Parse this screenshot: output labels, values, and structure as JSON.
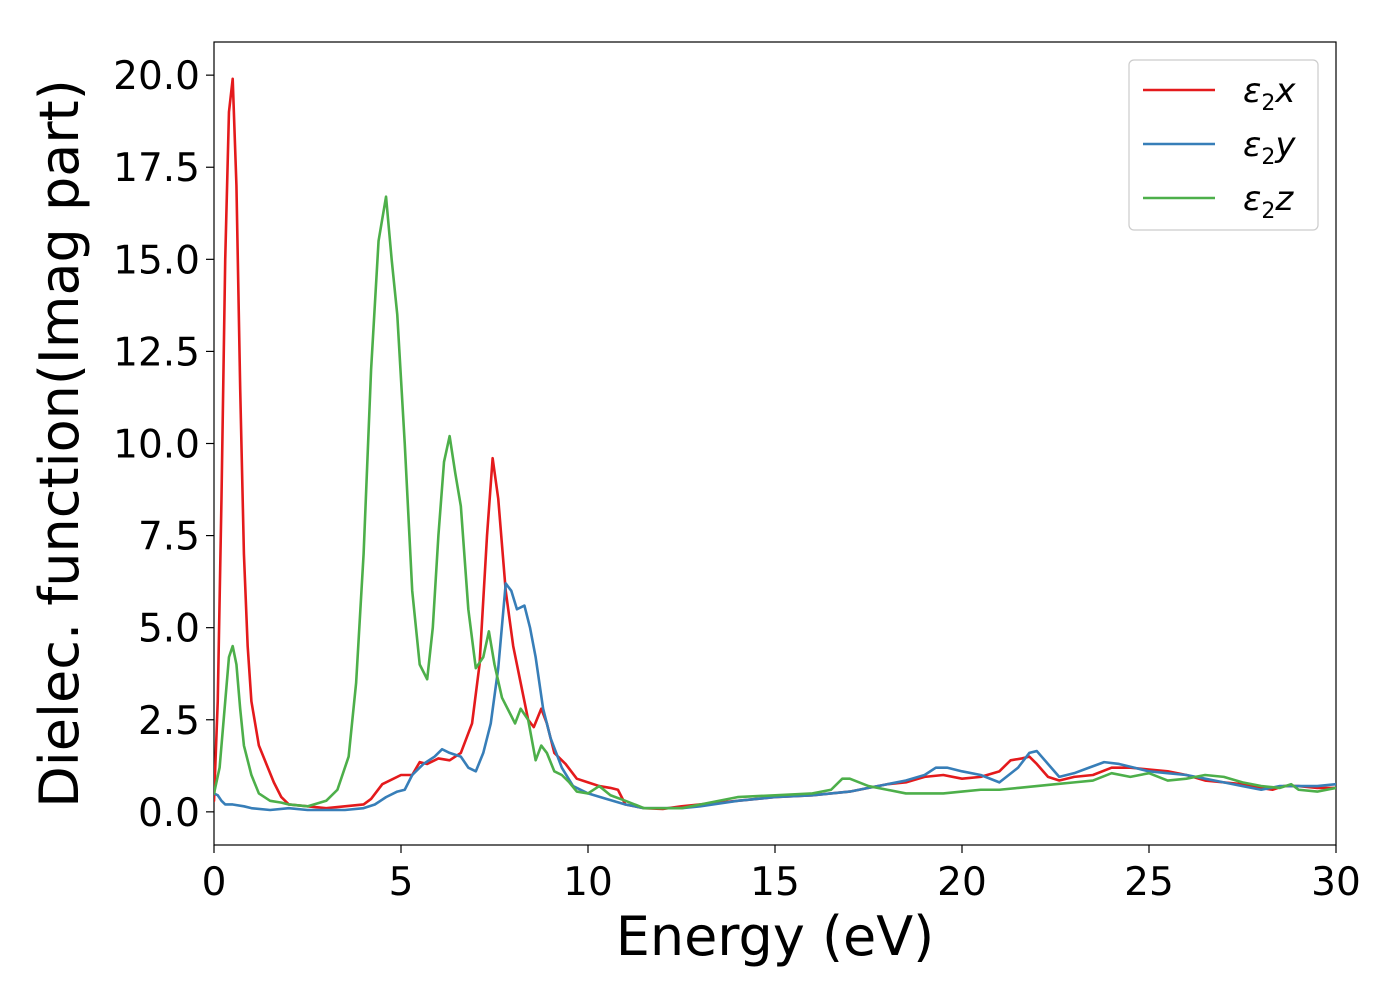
{
  "chart_data": {
    "type": "line",
    "xlabel": "Energy (eV)",
    "ylabel": "Dielec. function(Imag part)",
    "xlim": [
      0,
      30
    ],
    "ylim": [
      -0.9,
      20.9
    ],
    "x_ticks": [
      "0",
      "5",
      "10",
      "15",
      "20",
      "25",
      "30"
    ],
    "y_ticks": [
      "0.0",
      "2.5",
      "5.0",
      "7.5",
      "10.0",
      "12.5",
      "15.0",
      "17.5",
      "20.0"
    ],
    "grid": false,
    "legend_position": "top-right",
    "legend": [
      {
        "symbol": "ε",
        "sub": "2",
        "var": "x"
      },
      {
        "symbol": "ε",
        "sub": "2",
        "var": "y"
      },
      {
        "symbol": "ε",
        "sub": "2",
        "var": "z"
      }
    ],
    "series": [
      {
        "color": "#e41a1c",
        "x": [
          0.0,
          0.1,
          0.2,
          0.3,
          0.4,
          0.5,
          0.6,
          0.7,
          0.8,
          0.9,
          1.0,
          1.2,
          1.4,
          1.6,
          1.8,
          2.0,
          2.5,
          3.0,
          3.5,
          4.0,
          4.2,
          4.5,
          5.0,
          5.3,
          5.5,
          5.7,
          6.0,
          6.3,
          6.6,
          6.9,
          7.1,
          7.3,
          7.45,
          7.6,
          7.8,
          8.0,
          8.2,
          8.4,
          8.55,
          8.75,
          8.9,
          9.1,
          9.4,
          9.7,
          10.0,
          10.3,
          10.6,
          10.8,
          11.0,
          11.5,
          12.0,
          12.5,
          13.0,
          14.0,
          15.0,
          16.0,
          17.0,
          17.5,
          18.0,
          18.5,
          19.0,
          19.5,
          20.0,
          20.5,
          21.0,
          21.3,
          21.6,
          21.8,
          22.0,
          22.3,
          22.6,
          23.0,
          23.5,
          24.0,
          24.5,
          25.0,
          25.5,
          26.0,
          26.5,
          27.0,
          27.5,
          28.0,
          28.3,
          28.6,
          29.0,
          29.5,
          30.0
        ],
        "y": [
          0.3,
          3.0,
          8.5,
          15.0,
          19.0,
          19.9,
          17.0,
          11.5,
          7.0,
          4.5,
          3.0,
          1.8,
          1.3,
          0.8,
          0.4,
          0.2,
          0.15,
          0.1,
          0.15,
          0.2,
          0.35,
          0.75,
          1.0,
          1.0,
          1.35,
          1.3,
          1.45,
          1.4,
          1.6,
          2.4,
          4.0,
          7.5,
          9.6,
          8.5,
          6.0,
          4.5,
          3.5,
          2.5,
          2.3,
          2.8,
          2.4,
          1.6,
          1.3,
          0.9,
          0.8,
          0.7,
          0.65,
          0.6,
          0.2,
          0.1,
          0.08,
          0.15,
          0.2,
          0.3,
          0.4,
          0.45,
          0.55,
          0.65,
          0.75,
          0.8,
          0.95,
          1.0,
          0.9,
          0.95,
          1.1,
          1.4,
          1.45,
          1.5,
          1.3,
          0.95,
          0.85,
          0.95,
          1.0,
          1.2,
          1.2,
          1.15,
          1.1,
          1.0,
          0.85,
          0.8,
          0.75,
          0.65,
          0.6,
          0.7,
          0.7,
          0.65,
          0.65
        ]
      },
      {
        "color": "#377eb8",
        "x": [
          0.0,
          0.1,
          0.2,
          0.3,
          0.5,
          0.8,
          1.0,
          1.5,
          2.0,
          2.5,
          3.0,
          3.5,
          4.0,
          4.3,
          4.6,
          4.9,
          5.1,
          5.3,
          5.6,
          5.9,
          6.1,
          6.3,
          6.6,
          6.8,
          7.0,
          7.2,
          7.4,
          7.6,
          7.8,
          7.95,
          8.1,
          8.3,
          8.45,
          8.6,
          8.8,
          9.0,
          9.3,
          9.6,
          10.0,
          10.5,
          11.0,
          11.5,
          12.0,
          12.5,
          13.0,
          14.0,
          15.0,
          16.0,
          17.0,
          17.5,
          18.0,
          18.5,
          19.0,
          19.3,
          19.6,
          20.0,
          20.5,
          21.0,
          21.5,
          21.8,
          22.0,
          22.3,
          22.6,
          23.0,
          23.4,
          23.8,
          24.2,
          24.6,
          25.0,
          25.5,
          26.0,
          26.5,
          27.0,
          27.5,
          28.0,
          28.5,
          29.0,
          29.5,
          30.0
        ],
        "y": [
          0.5,
          0.45,
          0.3,
          0.2,
          0.2,
          0.15,
          0.1,
          0.05,
          0.1,
          0.05,
          0.05,
          0.05,
          0.1,
          0.2,
          0.4,
          0.55,
          0.6,
          1.0,
          1.3,
          1.5,
          1.7,
          1.6,
          1.5,
          1.2,
          1.1,
          1.6,
          2.4,
          3.9,
          6.2,
          6.0,
          5.5,
          5.6,
          5.0,
          4.2,
          2.8,
          2.0,
          1.2,
          0.7,
          0.5,
          0.35,
          0.2,
          0.1,
          0.1,
          0.1,
          0.15,
          0.3,
          0.4,
          0.45,
          0.55,
          0.65,
          0.75,
          0.85,
          1.0,
          1.2,
          1.2,
          1.1,
          1.0,
          0.8,
          1.2,
          1.6,
          1.65,
          1.3,
          0.95,
          1.05,
          1.2,
          1.35,
          1.3,
          1.2,
          1.1,
          1.05,
          1.0,
          0.9,
          0.8,
          0.7,
          0.6,
          0.7,
          0.7,
          0.7,
          0.75
        ]
      },
      {
        "color": "#4daf4a",
        "x": [
          0.0,
          0.15,
          0.3,
          0.4,
          0.5,
          0.6,
          0.7,
          0.8,
          1.0,
          1.2,
          1.5,
          1.8,
          2.0,
          2.5,
          3.0,
          3.3,
          3.6,
          3.8,
          4.0,
          4.2,
          4.4,
          4.6,
          4.75,
          4.9,
          5.1,
          5.3,
          5.5,
          5.7,
          5.85,
          6.0,
          6.15,
          6.3,
          6.45,
          6.6,
          6.8,
          7.0,
          7.2,
          7.35,
          7.5,
          7.7,
          7.9,
          8.05,
          8.2,
          8.4,
          8.6,
          8.75,
          8.9,
          9.1,
          9.3,
          9.5,
          9.7,
          10.0,
          10.3,
          10.6,
          11.0,
          11.5,
          12.0,
          12.5,
          13.0,
          14.0,
          15.0,
          16.0,
          16.5,
          16.8,
          17.0,
          17.5,
          18.0,
          18.5,
          19.0,
          19.5,
          20.0,
          20.5,
          21.0,
          21.5,
          22.0,
          22.5,
          23.0,
          23.5,
          24.0,
          24.5,
          25.0,
          25.5,
          26.0,
          26.5,
          27.0,
          27.5,
          28.0,
          28.5,
          28.8,
          29.0,
          29.5,
          30.0
        ],
        "y": [
          0.5,
          1.2,
          3.0,
          4.2,
          4.5,
          4.0,
          2.8,
          1.8,
          1.0,
          0.5,
          0.3,
          0.25,
          0.2,
          0.15,
          0.3,
          0.6,
          1.5,
          3.5,
          7.0,
          12.0,
          15.5,
          16.7,
          15.0,
          13.5,
          10.0,
          6.0,
          4.0,
          3.6,
          5.0,
          7.5,
          9.5,
          10.2,
          9.2,
          8.3,
          5.5,
          3.9,
          4.2,
          4.9,
          4.0,
          3.1,
          2.7,
          2.4,
          2.8,
          2.5,
          1.4,
          1.8,
          1.6,
          1.1,
          1.0,
          0.8,
          0.55,
          0.5,
          0.7,
          0.45,
          0.3,
          0.1,
          0.1,
          0.1,
          0.2,
          0.4,
          0.45,
          0.5,
          0.6,
          0.9,
          0.9,
          0.7,
          0.6,
          0.5,
          0.5,
          0.5,
          0.55,
          0.6,
          0.6,
          0.65,
          0.7,
          0.75,
          0.8,
          0.85,
          1.05,
          0.95,
          1.05,
          0.85,
          0.9,
          1.0,
          0.95,
          0.8,
          0.7,
          0.65,
          0.75,
          0.6,
          0.55,
          0.65
        ]
      }
    ]
  }
}
